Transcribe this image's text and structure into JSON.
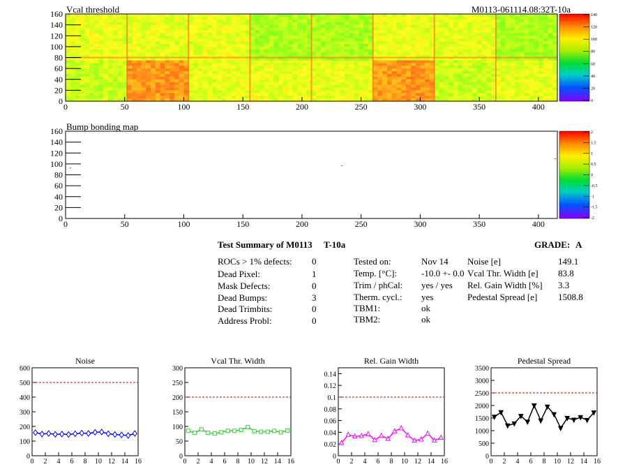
{
  "header": {
    "map_title": "Vcal threshold",
    "run_id": "M0113-061114.08:32T-10a",
    "bump_title": "Bump bonding map"
  },
  "maps": {
    "y_ticks": [
      "0",
      "20",
      "40",
      "60",
      "80",
      "100",
      "120",
      "140",
      "160"
    ],
    "x_ticks": [
      "0",
      "50",
      "100",
      "150",
      "200",
      "250",
      "300",
      "350",
      "400"
    ],
    "vcal_scale": [
      "140",
      "120",
      "100",
      "80",
      "60",
      "40",
      "20",
      "0"
    ],
    "bump_scale": [
      "2",
      "1.5",
      "1",
      "0.5",
      "0",
      "-0.5",
      "-1",
      "-1.5",
      "-2"
    ]
  },
  "summary": {
    "title": "Test Summary of M0113",
    "temp_tag": "T-10a",
    "grade_label": "GRADE:",
    "grade": "A",
    "defects": [
      {
        "label": "ROCs > 1% defects:",
        "value": "0"
      },
      {
        "label": "Dead Pixel:",
        "value": "1"
      },
      {
        "label": "Mask Defects:",
        "value": "0"
      },
      {
        "label": "Dead Bumps:",
        "value": "3"
      },
      {
        "label": "Dead Trimbits:",
        "value": "0"
      },
      {
        "label": "Address Probl:",
        "value": "0"
      }
    ],
    "conditions": [
      {
        "label": "Tested on:",
        "value": "Nov 14"
      },
      {
        "label": "Temp. [°C]:",
        "value": "-10.0 +- 0.0"
      },
      {
        "label": "Trim / phCal:",
        "value": "yes / yes"
      },
      {
        "label": "Therm. cycl.:",
        "value": "yes"
      },
      {
        "label": "TBM1:",
        "value": "ok"
      },
      {
        "label": "TBM2:",
        "value": "ok"
      }
    ],
    "results": [
      {
        "label": "Noise [e]",
        "value": "149.1"
      },
      {
        "label": "Vcal Thr. Width [e]",
        "value": "83.8"
      },
      {
        "label": "Rel. Gain Width [%]",
        "value": "3.3"
      },
      {
        "label": "Pedestal Spread [e]",
        "value": "1508.8"
      }
    ]
  },
  "colors": {
    "noise": "#0000ff",
    "vcal": "#33cc33",
    "gain": "#ff00ff",
    "pedestal": "#000000",
    "limit": "#cc0000"
  },
  "chart_data": [
    {
      "type": "line",
      "title": "Noise",
      "ylim": [
        0,
        600
      ],
      "xlim": [
        0,
        16
      ],
      "yticks": [
        "0",
        "100",
        "200",
        "300",
        "400",
        "500",
        "600"
      ],
      "xticks": [
        "0",
        "2",
        "4",
        "6",
        "8",
        "10",
        "12",
        "14",
        "16"
      ],
      "limit": 500,
      "marker": "diamond",
      "x": [
        0.5,
        1.5,
        2.5,
        3.5,
        4.5,
        5.5,
        6.5,
        7.5,
        8.5,
        9.5,
        10.5,
        11.5,
        12.5,
        13.5,
        14.5,
        15.5
      ],
      "values": [
        158,
        148,
        152,
        146,
        148,
        145,
        150,
        155,
        152,
        160,
        162,
        150,
        145,
        142,
        138,
        152
      ]
    },
    {
      "type": "line",
      "title": "Vcal Thr. Width",
      "ylim": [
        0,
        300
      ],
      "xlim": [
        0,
        16
      ],
      "yticks": [
        "0",
        "50",
        "100",
        "150",
        "200",
        "250",
        "300"
      ],
      "xticks": [
        "0",
        "2",
        "4",
        "6",
        "8",
        "10",
        "12",
        "14",
        "16"
      ],
      "limit": 200,
      "marker": "square",
      "x": [
        0.5,
        1.5,
        2.5,
        3.5,
        4.5,
        5.5,
        6.5,
        7.5,
        8.5,
        9.5,
        10.5,
        11.5,
        12.5,
        13.5,
        14.5,
        15.5
      ],
      "values": [
        85,
        78,
        90,
        78,
        76,
        80,
        85,
        85,
        88,
        98,
        84,
        82,
        82,
        85,
        80,
        86
      ]
    },
    {
      "type": "line",
      "title": "Rel. Gain Width",
      "ylim": [
        0,
        0.15
      ],
      "xlim": [
        0,
        16
      ],
      "yticks": [
        "0",
        "0.02",
        "0.04",
        "0.06",
        "0.08",
        "0.1",
        "0.12",
        "0.14"
      ],
      "xticks": [
        "0",
        "2",
        "4",
        "6",
        "8",
        "10",
        "12",
        "14",
        "16"
      ],
      "limit": 0.1,
      "marker": "triangle",
      "x": [
        0.5,
        1.5,
        2.5,
        3.5,
        4.5,
        5.5,
        6.5,
        7.5,
        8.5,
        9.5,
        10.5,
        11.5,
        12.5,
        13.5,
        14.5,
        15.5
      ],
      "values": [
        0.022,
        0.036,
        0.033,
        0.034,
        0.037,
        0.027,
        0.034,
        0.029,
        0.042,
        0.047,
        0.035,
        0.026,
        0.028,
        0.038,
        0.026,
        0.031
      ]
    },
    {
      "type": "line",
      "title": "Pedestal Spread",
      "ylim": [
        0,
        3500
      ],
      "xlim": [
        0,
        16
      ],
      "yticks": [
        "0",
        "500",
        "1000",
        "1500",
        "2000",
        "2500",
        "3000",
        "3500"
      ],
      "xticks": [
        "0",
        "2",
        "4",
        "6",
        "8",
        "10",
        "12",
        "14",
        "16"
      ],
      "limit": 2500,
      "marker": "triangle-down",
      "x": [
        0.5,
        1.5,
        2.5,
        3.5,
        4.5,
        5.5,
        6.5,
        7.5,
        8.5,
        9.5,
        10.5,
        11.5,
        12.5,
        13.5,
        14.5,
        15.5
      ],
      "values": [
        1550,
        1730,
        1200,
        1280,
        1580,
        1350,
        2000,
        1400,
        1950,
        1650,
        1100,
        1500,
        1430,
        1530,
        1420,
        1720
      ]
    }
  ]
}
